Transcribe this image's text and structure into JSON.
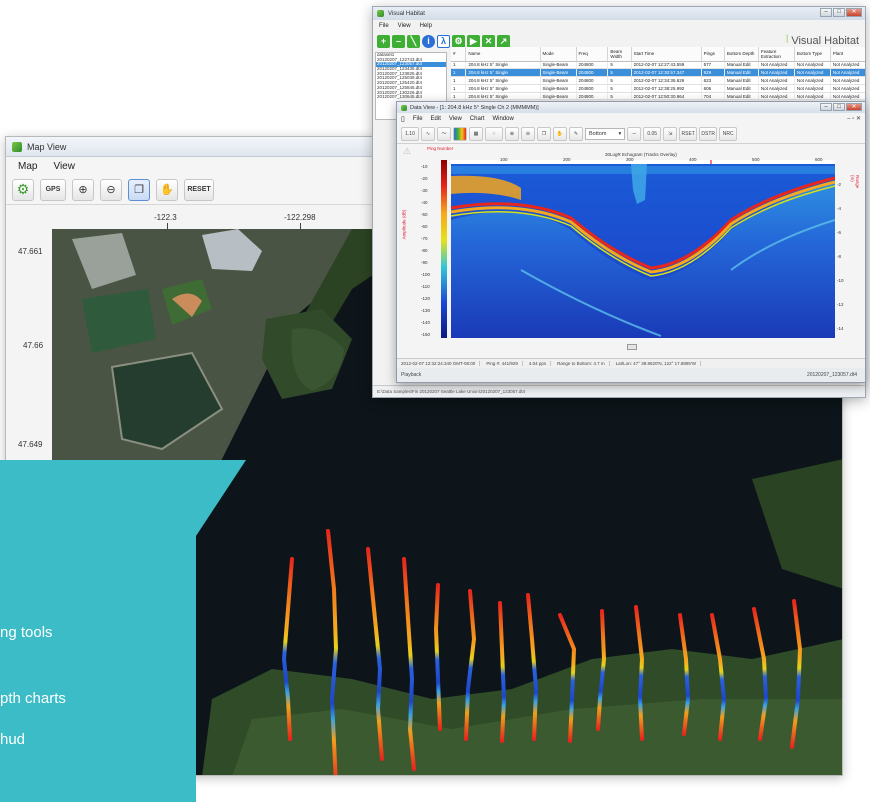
{
  "map_view": {
    "title": "Map View",
    "menu": [
      "Map",
      "View"
    ],
    "toolbar": {
      "gps_label": "GPS",
      "reset_label": "RESET"
    },
    "lon_ticks": [
      "-122.3",
      "-122.298"
    ],
    "lat_ticks": [
      "47.661",
      "47.66",
      "47.649"
    ]
  },
  "callout": {
    "lines": [
      "ng tools",
      "pth charts",
      "hud"
    ]
  },
  "visual_habitat": {
    "title": "Visual Habitat",
    "menu": [
      "File",
      "View",
      "Help"
    ],
    "brand": "Visual Habitat",
    "datasets": [
      "dataset1",
      "20120207_122743.dt4",
      "20120207_123057.dt4",
      "20120207_123436.dt4",
      "20120207_123825.dt4",
      "20120207_125039.dt4",
      "20120207_125420.dt4",
      "20120207_125845.dt4",
      "20120207_130226.dt4",
      "20120207_130645.dt4"
    ],
    "table": {
      "columns": [
        "#",
        "Name",
        "Mode",
        "Freq",
        "Beam Width",
        "Start Time",
        "Pings",
        "Bottom Depth",
        "Feature Extraction",
        "Bottom Type",
        "Plant"
      ],
      "rows": [
        [
          "1",
          "204.8 kHz 5° Single",
          "Single-Beam",
          "204800",
          "5",
          "2012-02-07 12:27:43.559",
          "577",
          "Manual Edit",
          "Not Analyzed",
          "Not Analyzed",
          "Not Analyzed"
        ],
        [
          "1",
          "204.8 kHz 5° Single",
          "Single-Beam",
          "204800",
          "5",
          "2012-02-07 12:30:57.347",
          "929",
          "Manual Edit",
          "Not Analyzed",
          "Not Analyzed",
          "Not Analyzed"
        ],
        [
          "1",
          "204.8 kHz 5° Single",
          "Single-Beam",
          "204800",
          "5",
          "2012-02-07 12:34:36.626",
          "623",
          "Manual Edit",
          "Not Analyzed",
          "Not Analyzed",
          "Not Analyzed"
        ],
        [
          "1",
          "204.8 kHz 5° Single",
          "Single-Beam",
          "204800",
          "5",
          "2012-02-07 12:38:25.992",
          "606",
          "Manual Edit",
          "Not Analyzed",
          "Not Analyzed",
          "Not Analyzed"
        ],
        [
          "1",
          "204.8 kHz 5° Single",
          "Single-Beam",
          "204800",
          "5",
          "2012-02-07 12:50:30.964",
          "704",
          "Manual Edit",
          "Not Analyzed",
          "Not Analyzed",
          "Not Analyzed"
        ]
      ],
      "selected_row": 1
    },
    "status": "E:\\Data Samples\\Fin 20120207 Seattle Lake Union\\20120207_123057.dt4"
  },
  "data_view": {
    "title": "Data View - [1: 204.8 kHz 5° Single Ch 2 (MMMMM)]",
    "menu": [
      "File",
      "Edit",
      "View",
      "Chart",
      "Window"
    ],
    "toolbar": {
      "bottom_select": "Bottom",
      "btn_lbl_1": "1.10",
      "btn_lbl_2": "0.05",
      "btn_lbl_3": "RSET",
      "btn_lbl_4": "DSTR",
      "btn_lbl_5": "NRC"
    },
    "ping_label": "Ping Number",
    "echogram_title": "30LogR Echogram (Tracks Overlay)",
    "y_axis_label": "Amplitude (dB)",
    "y2_axis_label": "Range (m)",
    "x_ticks": [
      "100",
      "200",
      "300",
      "400",
      "500",
      "600"
    ],
    "y_ticks": [
      "-10",
      "-20",
      "-30",
      "-40",
      "-50",
      "-60",
      "-70",
      "-80",
      "-90",
      "-100",
      "-110",
      "-120",
      "-130",
      "-140",
      "-150"
    ],
    "y2_ticks": [
      "-2",
      "-4",
      "-6",
      "-8",
      "-10",
      "-12",
      "-14"
    ],
    "status": [
      "2012-02-07 12:32:24.340 GMT-08:00",
      "Ping #: 441/929",
      "4.04 pps",
      "Range to Bottom: 4.7 m",
      "Lat/Lon: 47° 39.8620'N, 122° 17.8895'W"
    ],
    "playback_label": "Playback",
    "file_label": "20120207_123057.dt4"
  },
  "colors": {
    "teal": "#3cbcc6",
    "water": "#0c1418",
    "vegetation": "#2f4a26",
    "selection": "#3b8ed9"
  }
}
